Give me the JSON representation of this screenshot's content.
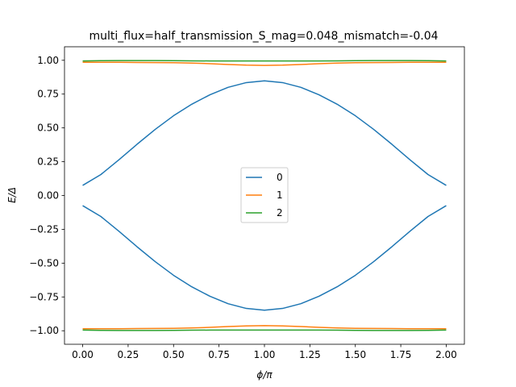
{
  "chart_data": {
    "type": "line",
    "title": "multi_flux=half_transmission_S_mag=0.048_mismatch=-0.04",
    "xlabel": "ϕ/π",
    "ylabel": "E/Δ",
    "xlim": [
      -0.1,
      2.1
    ],
    "ylim": [
      -1.1,
      1.1
    ],
    "xticks": [
      0.0,
      0.25,
      0.5,
      0.75,
      1.0,
      1.25,
      1.5,
      1.75,
      2.0
    ],
    "xtick_labels": [
      "0.00",
      "0.25",
      "0.50",
      "0.75",
      "1.00",
      "1.25",
      "1.50",
      "1.75",
      "2.00"
    ],
    "yticks": [
      -1.0,
      -0.75,
      -0.5,
      -0.25,
      0.0,
      0.25,
      0.5,
      0.75,
      1.0
    ],
    "ytick_labels": [
      "−1.00",
      "−0.75",
      "−0.50",
      "−0.25",
      "0.00",
      "0.25",
      "0.50",
      "0.75",
      "1.00"
    ],
    "grid": false,
    "legend_position": "center",
    "x": [
      0.0,
      0.1,
      0.2,
      0.3,
      0.4,
      0.5,
      0.6,
      0.7,
      0.8,
      0.9,
      1.0,
      1.1,
      1.2,
      1.3,
      1.4,
      1.5,
      1.6,
      1.7,
      1.8,
      1.9,
      2.0
    ],
    "series": [
      {
        "name": "0",
        "color": "#1f77b4",
        "lines": [
          [
            0.075,
            0.155,
            0.265,
            0.38,
            0.49,
            0.59,
            0.675,
            0.745,
            0.8,
            0.835,
            0.848,
            0.835,
            0.8,
            0.745,
            0.675,
            0.59,
            0.49,
            0.38,
            0.265,
            0.155,
            0.075
          ],
          [
            -0.075,
            -0.155,
            -0.265,
            -0.38,
            -0.49,
            -0.59,
            -0.675,
            -0.745,
            -0.8,
            -0.835,
            -0.848,
            -0.835,
            -0.8,
            -0.745,
            -0.675,
            -0.59,
            -0.49,
            -0.38,
            -0.265,
            -0.155,
            -0.075
          ]
        ]
      },
      {
        "name": "1",
        "color": "#ff7f0e",
        "lines": [
          [
            0.985,
            0.985,
            0.985,
            0.984,
            0.983,
            0.982,
            0.979,
            0.975,
            0.969,
            0.964,
            0.962,
            0.964,
            0.969,
            0.975,
            0.979,
            0.982,
            0.983,
            0.984,
            0.985,
            0.985,
            0.985
          ],
          [
            -0.985,
            -0.985,
            -0.985,
            -0.984,
            -0.983,
            -0.982,
            -0.979,
            -0.975,
            -0.969,
            -0.964,
            -0.962,
            -0.964,
            -0.969,
            -0.975,
            -0.979,
            -0.982,
            -0.983,
            -0.984,
            -0.985,
            -0.985,
            -0.985
          ]
        ]
      },
      {
        "name": "2",
        "color": "#2ca02c",
        "lines": [
          [
            0.995,
            0.997,
            0.998,
            0.998,
            0.998,
            0.997,
            0.996,
            0.995,
            0.995,
            0.995,
            0.995,
            0.995,
            0.995,
            0.995,
            0.996,
            0.997,
            0.998,
            0.998,
            0.998,
            0.997,
            0.995
          ],
          [
            -0.995,
            -0.997,
            -0.998,
            -0.998,
            -0.998,
            -0.997,
            -0.996,
            -0.995,
            -0.995,
            -0.995,
            -0.995,
            -0.995,
            -0.995,
            -0.995,
            -0.996,
            -0.997,
            -0.998,
            -0.998,
            -0.998,
            -0.997,
            -0.995
          ]
        ]
      }
    ]
  }
}
